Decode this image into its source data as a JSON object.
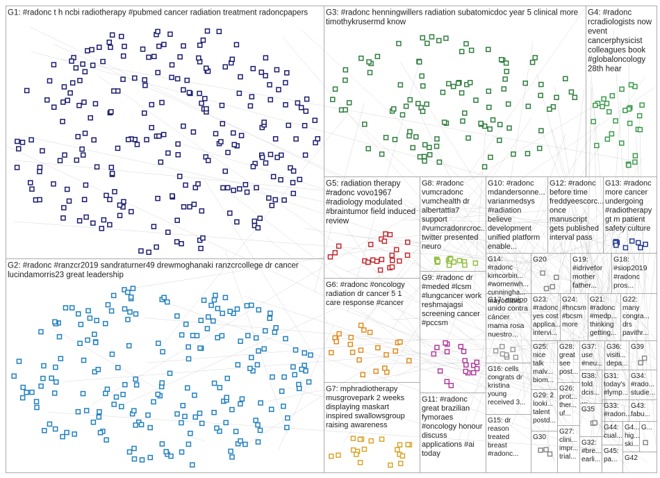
{
  "groups": [
    {
      "lines": [
        "G1: #radonc t h ncbi radiotherapy #pubmed cancer radiation treatment radoncpapers"
      ]
    },
    {
      "lines": [
        "G2: #radonc #ranzcr2019 sandraturner49 drewmoghanaki ranzcrcollege dr cancer",
        "lucindamorris23 great leadership"
      ]
    },
    {
      "lines": [
        "G3: #radonc henningwillers radiation subatomicdoc year 5 clinical more",
        "timothykrusermd know"
      ]
    },
    {
      "lines": [
        "G4: #radonc",
        "rcradiologists now",
        "event",
        "cancerphysicist",
        "colleagues book",
        "#globaloncology",
        "28th hear"
      ]
    },
    {
      "lines": [
        "G5: radiation therapy",
        "#radonc vovo1967",
        "#radiology modulated",
        "#braintumor field induced",
        "review"
      ]
    },
    {
      "lines": [
        "G8: #radonc",
        "vumcradonc",
        "vumchealth dr",
        "albertattia7",
        "support",
        "#vumcradonrcroc...",
        "twitter presented",
        "neuro"
      ]
    },
    {
      "lines": [
        "G10: #radonc",
        "mdandersonne...",
        "varianmedsys",
        "#radiation",
        "believe",
        "development",
        "unified platform",
        "enable..."
      ]
    },
    {
      "lines": [
        "G12: #radonc",
        "before time",
        "freddyeescorc...",
        "once",
        "manuscript",
        "gets published",
        "interval pass"
      ]
    },
    {
      "lines": [
        "G13: #radonc",
        "more cancer",
        "undergoing",
        "#radiotherapy",
        "gt m patient",
        "safety culture"
      ]
    },
    {
      "lines": [
        "G6: #radonc #oncology",
        "radiation dr cancer 5 1",
        "care response #cancer"
      ]
    },
    {
      "lines": [
        "G9: #radonc dr",
        "#meded #lcsm",
        "#lungcancer work",
        "reshmajagsi",
        "screening cancer",
        "#pccsm"
      ]
    },
    {
      "lines": [
        "G14:",
        "#radonc",
        "kimcorbin...",
        "#womenwh...",
        "cunningha...",
        "mayoclinic..."
      ]
    },
    {
      "lines": [
        "G20"
      ]
    },
    {
      "lines": [
        "G19:",
        "#idrivefor",
        "mother",
        "father..."
      ]
    },
    {
      "lines": [
        "G18:",
        "#siop2019",
        "#radonc",
        "pros..."
      ]
    },
    {
      "lines": [
        "G17: equipo",
        "unido contra",
        "cáncer",
        "mama rosa",
        "nuestro..."
      ]
    },
    {
      "lines": [
        "G23:",
        "#radonc",
        "yes cost",
        "applica...",
        "intervi..."
      ]
    },
    {
      "lines": [
        "G24:",
        "#hncsm",
        "#bcsm",
        "more"
      ]
    },
    {
      "lines": [
        "G21:",
        "#radonc",
        "#medp...",
        "thinking",
        "getting..."
      ]
    },
    {
      "lines": [
        "G22:",
        "many",
        "congra...",
        "drs",
        "pavithr..."
      ]
    },
    {
      "lines": [
        "G25:",
        "nice",
        "talk",
        "malv...",
        "biom..."
      ]
    },
    {
      "lines": [
        "G28:",
        "great",
        "see",
        "post..."
      ]
    },
    {
      "lines": [
        "G37:",
        "use",
        "#neu...",
        "..."
      ]
    },
    {
      "lines": [
        "G36:",
        "visiti...",
        "depa..."
      ]
    },
    {
      "lines": [
        "G39"
      ]
    },
    {
      "lines": [
        "G16: cells",
        "congrats dr",
        "kristina",
        "young",
        "received 3..."
      ]
    },
    {
      "lines": [
        "G29: 2",
        "looki...",
        "talent",
        "postd..."
      ]
    },
    {
      "lines": [
        "G26:",
        "prot...",
        "ther...",
        "uf..."
      ]
    },
    {
      "lines": [
        "G38:",
        "told",
        "dcis...",
        "..."
      ]
    },
    {
      "lines": [
        "G31:",
        "today's",
        "#lymp..."
      ]
    },
    {
      "lines": [
        "G34:",
        "#rado...",
        "studie..."
      ]
    },
    {
      "lines": [
        "G35"
      ]
    },
    {
      "lines": [
        "G33:",
        "#radon..."
      ]
    },
    {
      "lines": [
        "G43:",
        "fabu..."
      ]
    },
    {
      "lines": [
        "G30"
      ]
    },
    {
      "lines": [
        "G27:",
        "clini...",
        "impr...",
        "trial..."
      ]
    },
    {
      "lines": [
        "G32:",
        "#bre...",
        "earli..."
      ]
    },
    {
      "lines": [
        "G44:",
        "cual..."
      ]
    },
    {
      "lines": [
        "G4...",
        "hig...",
        "ski..."
      ]
    },
    {
      "lines": [
        "G..."
      ]
    },
    {
      "lines": [
        "G45:",
        "pa..."
      ]
    },
    {
      "lines": [
        "G42"
      ]
    },
    {
      "lines": [
        "G7: mphradiotherapy",
        "musgrovepark 2 weeks",
        "displaying maskart",
        "inspired swallowsgroup",
        "raising awareness"
      ]
    },
    {
      "lines": [
        "G11: #radonc",
        "great brazilian",
        "fymoraes",
        "#oncology honour",
        "discuss",
        "applications #ai",
        "today"
      ]
    },
    {
      "lines": [
        "G15: dr",
        "reason",
        "treated",
        "breast",
        "#radonc..."
      ]
    }
  ]
}
